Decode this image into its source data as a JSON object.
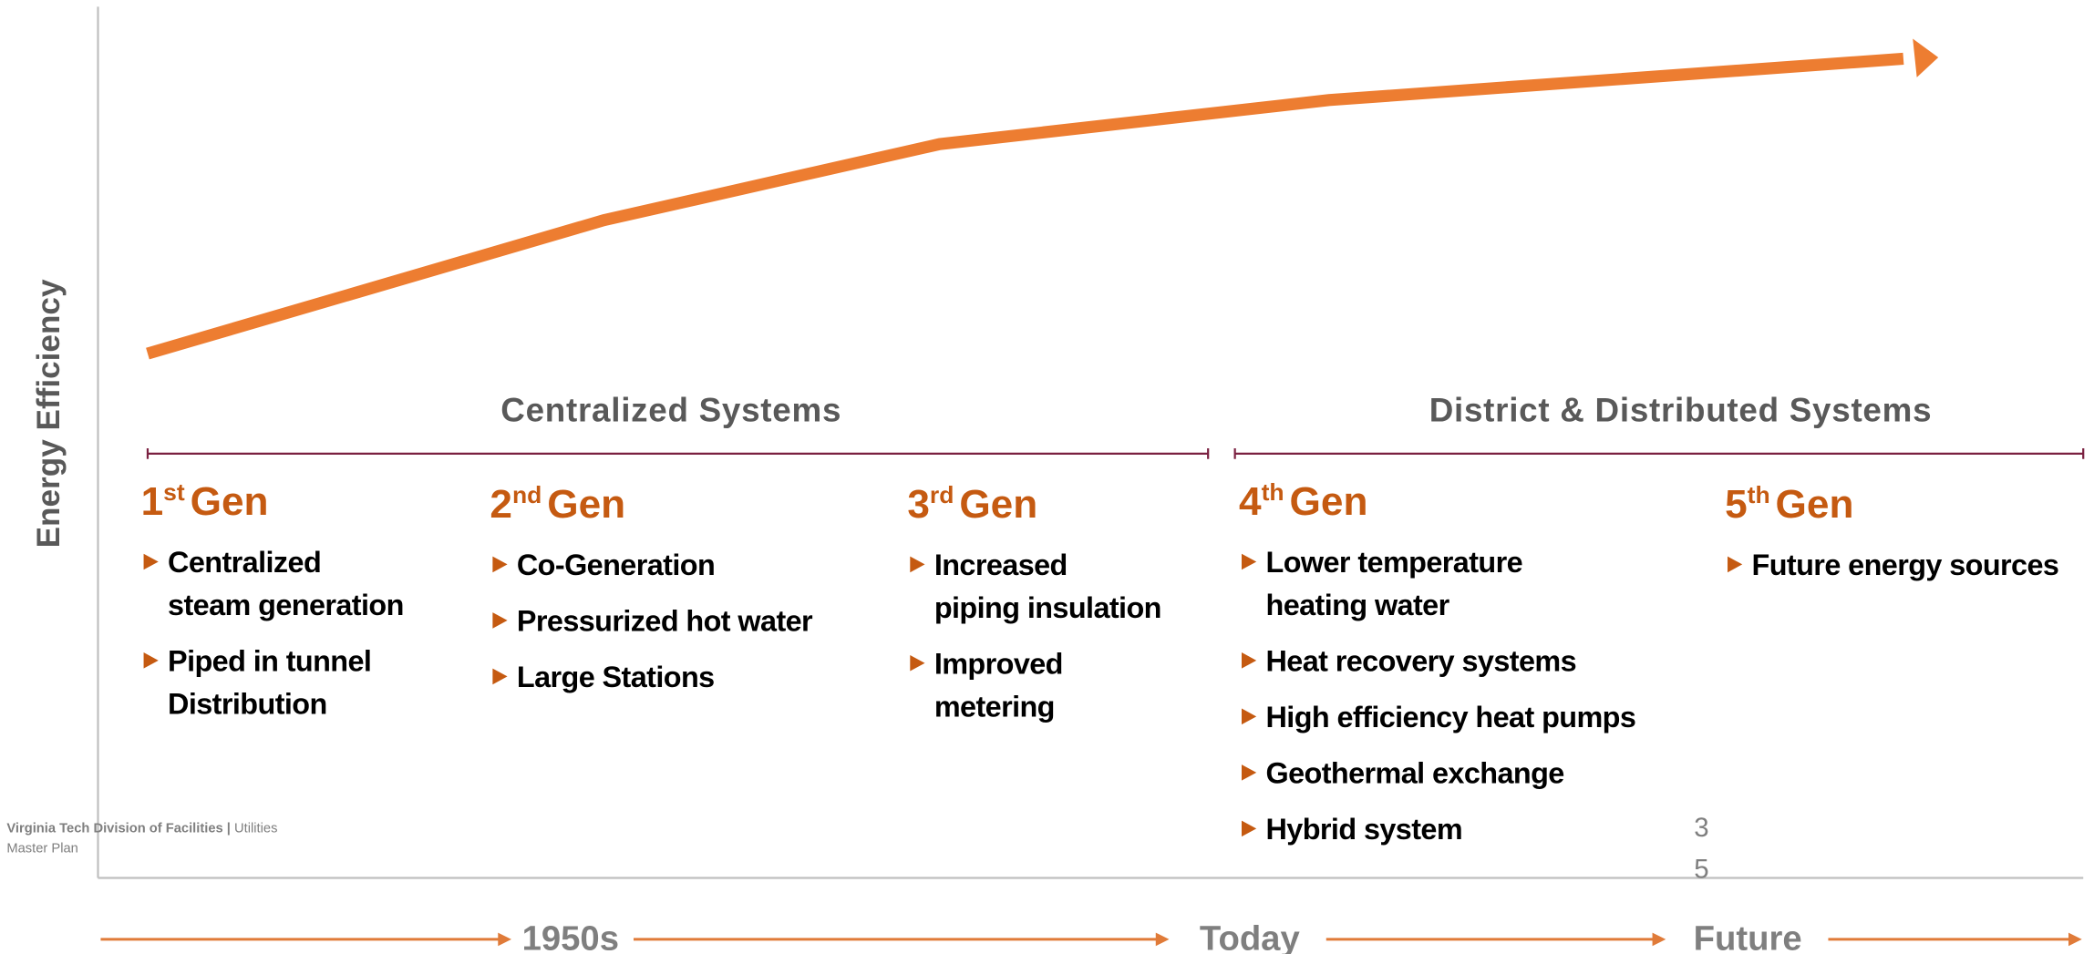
{
  "axis_label": "Energy Efficiency",
  "groups": [
    {
      "title": "Centralized Systems"
    },
    {
      "title": "District & Distributed Systems"
    }
  ],
  "generations": [
    {
      "number": "1",
      "suffix": "st",
      "label": "Gen",
      "bullets": [
        {
          "lines": [
            "Centralized",
            "steam generation"
          ]
        },
        {
          "lines": [
            "Piped in tunnel",
            "Distribution"
          ]
        }
      ]
    },
    {
      "number": "2",
      "suffix": "nd",
      "label": "Gen",
      "bullets": [
        {
          "lines": [
            "Co-Generation"
          ]
        },
        {
          "lines": [
            "Pressurized hot water"
          ]
        },
        {
          "lines": [
            "Large Stations"
          ]
        }
      ]
    },
    {
      "number": "3",
      "suffix": "rd",
      "label": "Gen",
      "bullets": [
        {
          "lines": [
            "Increased",
            "piping insulation"
          ]
        },
        {
          "lines": [
            "Improved",
            "metering"
          ]
        }
      ]
    },
    {
      "number": "4",
      "suffix": "th",
      "label": "Gen",
      "bullets": [
        {
          "lines": [
            "Lower temperature",
            "heating water"
          ]
        },
        {
          "lines": [
            "Heat recovery systems"
          ]
        },
        {
          "lines": [
            "High efficiency heat pumps"
          ]
        },
        {
          "lines": [
            "Geothermal exchange"
          ]
        },
        {
          "lines": [
            "Hybrid system"
          ]
        }
      ]
    },
    {
      "number": "5",
      "suffix": "th",
      "label": "Gen",
      "bullets": [
        {
          "lines": [
            "Future energy sources"
          ]
        }
      ]
    }
  ],
  "timeline": [
    "1950s",
    "Today",
    "Future"
  ],
  "footer": {
    "org": "Virginia Tech Division of Facilities",
    "separator": "|",
    "line1": "Utilities",
    "line2": "Master Plan"
  },
  "page_number": [
    "3",
    "5"
  ]
}
